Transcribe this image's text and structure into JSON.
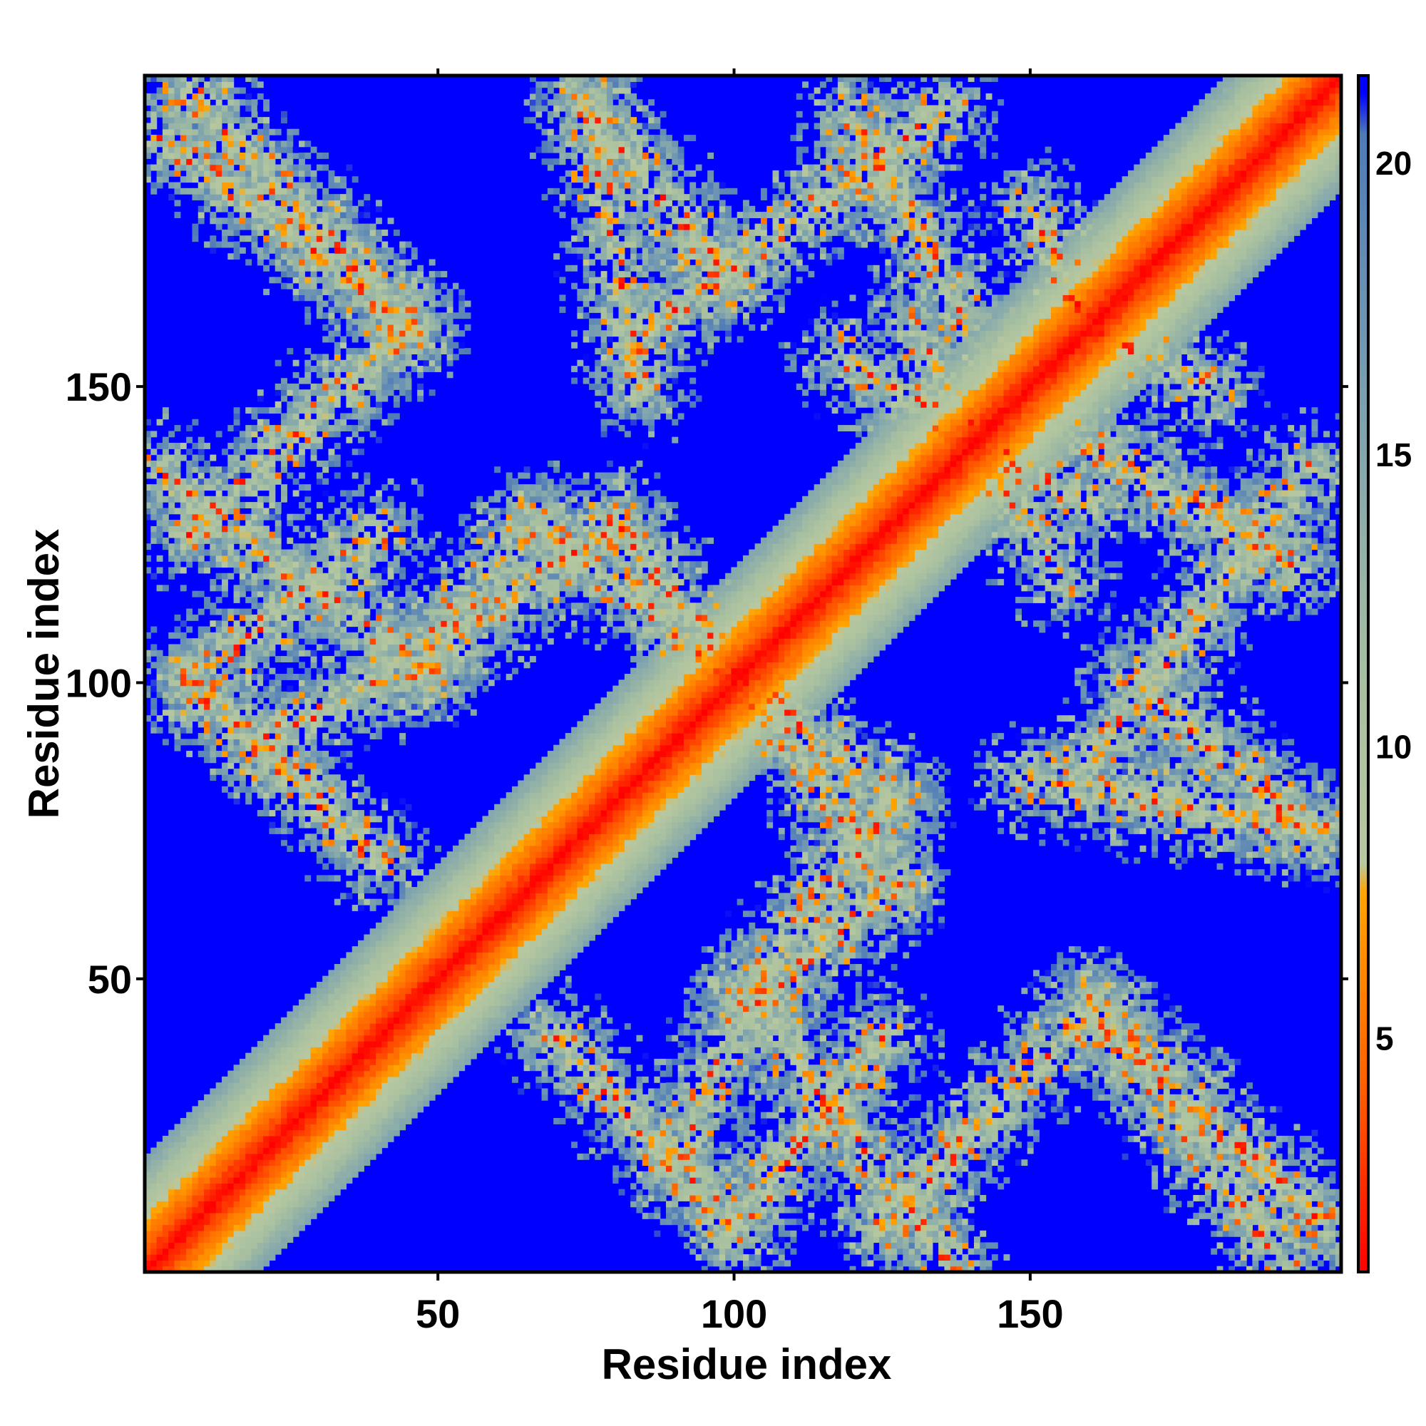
{
  "chart_data": {
    "type": "heatmap",
    "title": "",
    "xlabel": "Residue index",
    "ylabel": "Residue index",
    "n_residues": 202,
    "xlim": [
      1,
      202
    ],
    "ylim": [
      1,
      202
    ],
    "x_ticks": [
      50,
      100,
      150
    ],
    "y_ticks": [
      50,
      100,
      150
    ],
    "colorbar": {
      "ticks": [
        5,
        10,
        15,
        20
      ],
      "range": [
        1,
        21.5
      ],
      "stops": [
        {
          "value": 1,
          "color": "#ff0000"
        },
        {
          "value": 4,
          "color": "#ff5a00"
        },
        {
          "value": 7.5,
          "color": "#ffa500"
        },
        {
          "value": 8,
          "color": "#b8c8a0"
        },
        {
          "value": 11,
          "color": "#a8c0a0"
        },
        {
          "value": 16,
          "color": "#7aa0b0"
        },
        {
          "value": 20.5,
          "color": "#4e7ab8"
        },
        {
          "value": 21.2,
          "color": "#0000ff"
        }
      ]
    },
    "background_color": "#0000ff",
    "diagonal_band": {
      "from": 1,
      "to": 202,
      "value_on_diagonal": 1
    },
    "contact_bands": [
      {
        "from": [
          2,
          193
        ],
        "to": [
          45,
          161
        ]
      },
      {
        "from": [
          2,
          136
        ],
        "to": [
          48,
          102
        ]
      },
      {
        "from": [
          20,
          90
        ],
        "to": [
          45,
          102
        ]
      },
      {
        "from": [
          47,
          102
        ],
        "to": [
          80,
          127
        ]
      },
      {
        "from": [
          80,
          127
        ],
        "to": [
          100,
          102
        ]
      },
      {
        "from": [
          75,
          197
        ],
        "to": [
          100,
          168
        ]
      },
      {
        "from": [
          100,
          102
        ],
        "to": [
          127,
          66
        ]
      },
      {
        "from": [
          127,
          66
        ],
        "to": [
          106,
          48
        ]
      },
      {
        "from": [
          70,
          40
        ],
        "to": [
          100,
          8
        ]
      },
      {
        "from": [
          100,
          8
        ],
        "to": [
          125,
          40
        ]
      },
      {
        "from": [
          125,
          8
        ],
        "to": [
          160,
          45
        ]
      },
      {
        "from": [
          160,
          45
        ],
        "to": [
          200,
          8
        ]
      },
      {
        "from": [
          150,
          84
        ],
        "to": [
          200,
          75
        ]
      },
      {
        "from": [
          160,
          86
        ],
        "to": [
          197,
          136
        ]
      },
      {
        "from": [
          118,
          155
        ],
        "to": [
          160,
          130
        ]
      },
      {
        "from": [
          120,
          195
        ],
        "to": [
          140,
          160
        ]
      },
      {
        "from": [
          160,
          160
        ],
        "to": [
          180,
          150
        ]
      }
    ]
  }
}
